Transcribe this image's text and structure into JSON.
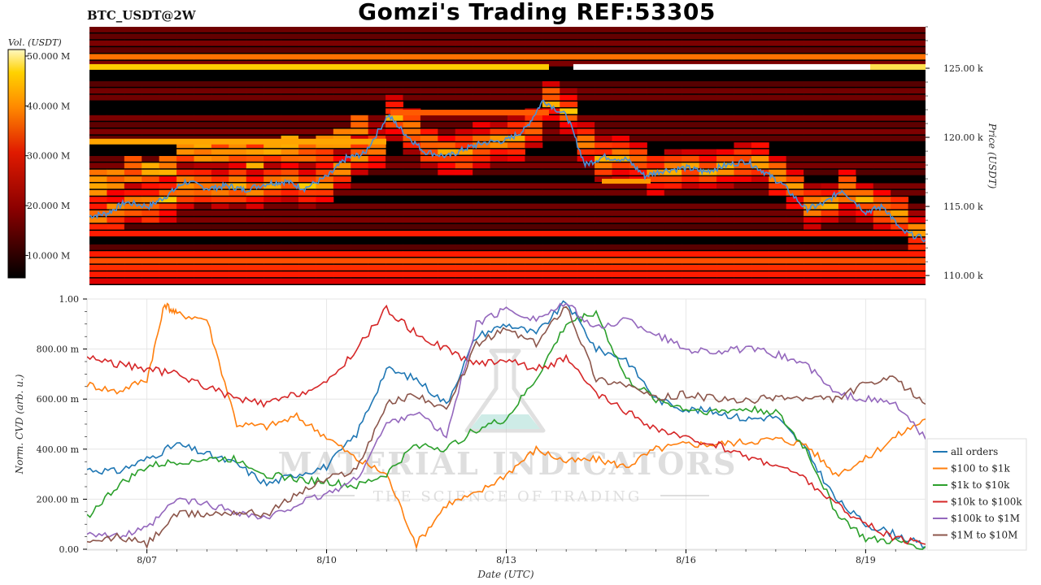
{
  "header": {
    "symbol": "BTC_USDT@2W",
    "title": "Gomzi's Trading REF:53305"
  },
  "watermark": {
    "main": "MATERIAL INDICATORS",
    "tagline": "THE SCIENCE OF TRADING"
  },
  "colors": {
    "heatmap_bg": "#000000",
    "price_line": "#4a90d9",
    "grid": "#e6e6e6"
  },
  "chart_data": [
    {
      "type": "heatmap",
      "colorbar": {
        "label": "Vol. (USDT)",
        "ticks": [
          "50.000 M",
          "40.000 M",
          "30.000 M",
          "20.000 M",
          "10.000 M"
        ],
        "tick_values": [
          50,
          40,
          30,
          20,
          10
        ],
        "range": [
          5.5,
          51.3
        ],
        "colormap": "hot"
      },
      "yaxis": {
        "label": "Price (USDT)",
        "ticks": [
          "125.00 k",
          "120.00 k",
          "115.00 k",
          "110.00 k"
        ],
        "tick_values": [
          125,
          120,
          115,
          110
        ],
        "range": [
          109.3,
          128.0
        ]
      },
      "price_series": {
        "x": [
          6.0,
          6.3,
          6.6,
          7.0,
          7.3,
          7.6,
          8.0,
          8.3,
          8.6,
          9.0,
          9.3,
          9.6,
          10.0,
          10.3,
          10.6,
          11.0,
          11.3,
          11.6,
          12.0,
          12.3,
          12.6,
          13.0,
          13.3,
          13.6,
          14.0,
          14.3,
          14.6,
          15.0,
          15.3,
          15.6,
          16.0,
          16.3,
          16.6,
          17.0,
          17.3,
          17.6,
          18.0,
          18.3,
          18.6,
          19.0,
          19.3,
          19.6,
          20.0
        ],
        "y": [
          114.3,
          114.5,
          115.3,
          115.0,
          115.8,
          116.8,
          116.3,
          116.5,
          116.2,
          116.7,
          116.8,
          116.3,
          117.2,
          118.5,
          118.8,
          121.6,
          120.2,
          119.0,
          118.6,
          119.2,
          119.6,
          119.8,
          120.6,
          122.7,
          121.5,
          118.0,
          118.6,
          118.4,
          117.2,
          117.6,
          117.8,
          117.5,
          117.9,
          118.3,
          117.5,
          116.6,
          114.8,
          115.2,
          116.2,
          114.6,
          115.0,
          113.2,
          112.6
        ]
      }
    },
    {
      "type": "line",
      "ylabel": "Norm. CVD (arb. u.)",
      "xlabel": "Date (UTC)",
      "categories": [
        "8/07",
        "8/10",
        "8/13",
        "8/16",
        "8/19"
      ],
      "category_positions": [
        7.0,
        10.0,
        13.0,
        16.0,
        19.0
      ],
      "xlim": [
        6.0,
        20.0
      ],
      "ylim": [
        0.0,
        1.0
      ],
      "yticks": [
        "0.00",
        "200.00 m",
        "400.00 m",
        "600.00 m",
        "800.00 m",
        "1.00"
      ],
      "ytick_values": [
        0.0,
        0.2,
        0.4,
        0.6,
        0.8,
        1.0
      ],
      "grid": true,
      "legend_position": "bottom-right",
      "series": [
        {
          "name": "all orders",
          "color": "#1f77b4",
          "x": [
            6.0,
            6.5,
            7.0,
            7.5,
            8.0,
            8.5,
            9.0,
            9.5,
            10.0,
            10.5,
            11.0,
            11.5,
            12.0,
            12.5,
            13.0,
            13.5,
            14.0,
            14.5,
            15.0,
            15.5,
            16.0,
            16.5,
            17.0,
            17.5,
            18.0,
            18.5,
            19.0,
            19.5,
            20.0
          ],
          "y": [
            0.32,
            0.31,
            0.36,
            0.42,
            0.38,
            0.34,
            0.26,
            0.3,
            0.33,
            0.46,
            0.72,
            0.68,
            0.58,
            0.85,
            0.9,
            0.86,
            0.99,
            0.8,
            0.76,
            0.6,
            0.56,
            0.55,
            0.52,
            0.53,
            0.4,
            0.2,
            0.1,
            0.06,
            0.01
          ]
        },
        {
          "name": "$100 to $1k",
          "color": "#ff7f0e",
          "x": [
            6.0,
            6.5,
            7.0,
            7.3,
            7.5,
            8.0,
            8.5,
            9.0,
            9.5,
            10.0,
            10.5,
            11.0,
            11.5,
            12.0,
            12.5,
            13.0,
            13.5,
            14.0,
            14.5,
            15.0,
            15.5,
            16.0,
            16.5,
            17.0,
            17.5,
            18.0,
            18.5,
            19.0,
            19.5,
            20.0
          ],
          "y": [
            0.66,
            0.63,
            0.68,
            0.98,
            0.94,
            0.92,
            0.5,
            0.49,
            0.53,
            0.45,
            0.36,
            0.3,
            0.02,
            0.18,
            0.22,
            0.3,
            0.4,
            0.35,
            0.36,
            0.33,
            0.4,
            0.42,
            0.42,
            0.43,
            0.44,
            0.42,
            0.3,
            0.36,
            0.45,
            0.52
          ]
        },
        {
          "name": "$1k to $10k",
          "color": "#2ca02c",
          "x": [
            6.0,
            6.5,
            7.0,
            7.5,
            8.0,
            8.5,
            9.0,
            9.5,
            10.0,
            10.5,
            11.0,
            11.5,
            12.0,
            12.5,
            13.0,
            13.5,
            14.0,
            14.5,
            15.0,
            15.5,
            16.0,
            16.5,
            17.0,
            17.5,
            18.0,
            18.5,
            19.0,
            19.5,
            20.0
          ],
          "y": [
            0.13,
            0.25,
            0.33,
            0.35,
            0.36,
            0.36,
            0.3,
            0.28,
            0.27,
            0.25,
            0.3,
            0.42,
            0.4,
            0.48,
            0.52,
            0.68,
            0.9,
            0.95,
            0.68,
            0.6,
            0.56,
            0.55,
            0.56,
            0.55,
            0.4,
            0.15,
            0.04,
            0.03,
            0.01
          ]
        },
        {
          "name": "$10k to $100k",
          "color": "#d62728",
          "x": [
            6.0,
            6.5,
            7.0,
            7.5,
            8.0,
            8.5,
            9.0,
            9.5,
            10.0,
            10.5,
            11.0,
            11.5,
            12.0,
            12.5,
            13.0,
            13.5,
            14.0,
            14.5,
            15.0,
            15.5,
            16.0,
            16.5,
            17.0,
            17.5,
            18.0,
            18.5,
            19.0,
            19.5,
            20.0
          ],
          "y": [
            0.77,
            0.74,
            0.72,
            0.7,
            0.65,
            0.6,
            0.58,
            0.62,
            0.66,
            0.8,
            0.96,
            0.86,
            0.8,
            0.74,
            0.76,
            0.72,
            0.76,
            0.62,
            0.55,
            0.48,
            0.44,
            0.42,
            0.37,
            0.34,
            0.28,
            0.18,
            0.1,
            0.04,
            0.02
          ]
        },
        {
          "name": "$100k to $1M",
          "color": "#9467bd",
          "x": [
            6.0,
            6.5,
            7.0,
            7.5,
            8.0,
            8.5,
            9.0,
            9.5,
            10.0,
            10.5,
            11.0,
            11.5,
            12.0,
            12.5,
            13.0,
            13.5,
            14.0,
            14.5,
            15.0,
            15.5,
            16.0,
            16.5,
            17.0,
            17.5,
            18.0,
            18.5,
            19.0,
            19.5,
            20.0
          ],
          "y": [
            0.07,
            0.05,
            0.08,
            0.2,
            0.18,
            0.15,
            0.12,
            0.18,
            0.22,
            0.28,
            0.5,
            0.55,
            0.45,
            0.9,
            0.96,
            0.92,
            0.98,
            0.88,
            0.92,
            0.86,
            0.8,
            0.79,
            0.8,
            0.78,
            0.74,
            0.62,
            0.6,
            0.58,
            0.44
          ]
        },
        {
          "name": "$1M to $10M",
          "color": "#8c564b",
          "x": [
            6.0,
            6.5,
            7.0,
            7.5,
            8.0,
            8.5,
            9.0,
            9.5,
            10.0,
            10.5,
            11.0,
            11.5,
            12.0,
            12.5,
            13.0,
            13.5,
            14.0,
            14.5,
            15.0,
            15.5,
            16.0,
            16.5,
            17.0,
            17.5,
            18.0,
            18.5,
            19.0,
            19.5,
            20.0
          ],
          "y": [
            0.02,
            0.05,
            0.02,
            0.14,
            0.14,
            0.15,
            0.14,
            0.22,
            0.28,
            0.32,
            0.58,
            0.62,
            0.55,
            0.82,
            0.88,
            0.82,
            0.98,
            0.68,
            0.66,
            0.6,
            0.62,
            0.6,
            0.59,
            0.61,
            0.6,
            0.6,
            0.66,
            0.68,
            0.58
          ]
        }
      ]
    }
  ]
}
